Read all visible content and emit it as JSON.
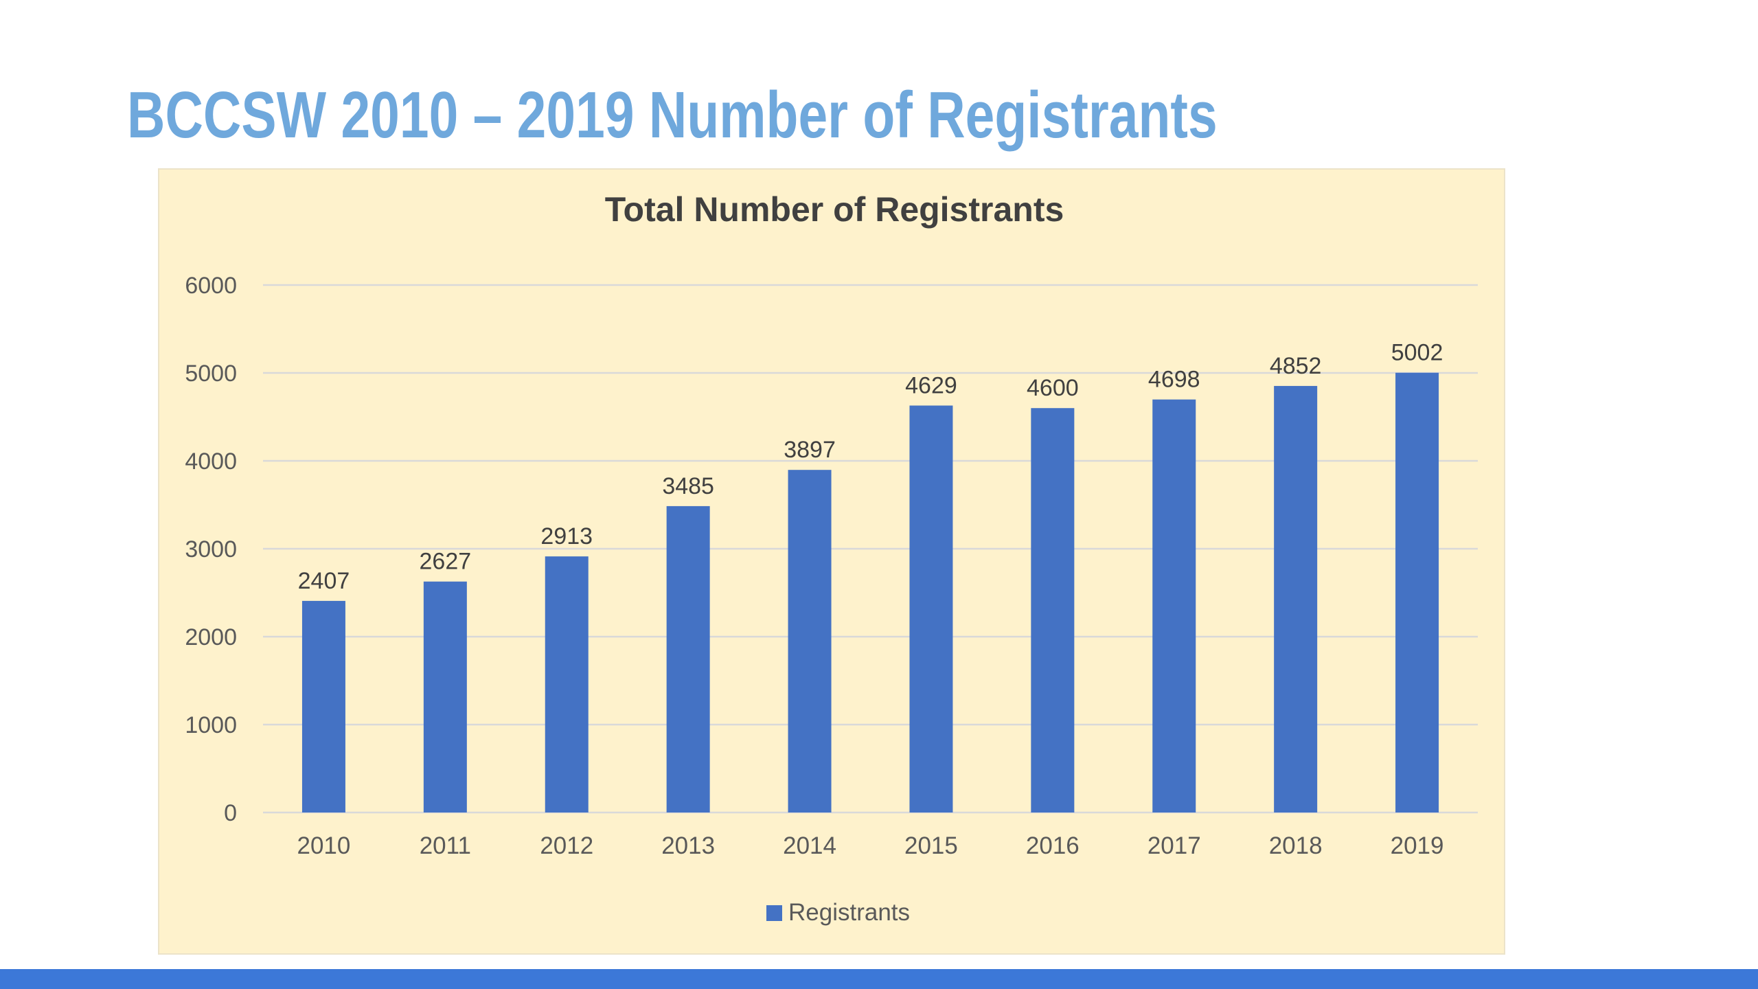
{
  "slide": {
    "title": "BCCSW 2010 – 2019 Number of Registrants",
    "title_color": "#6fa8dc",
    "bottom_bar_color": "#3c78d8"
  },
  "chart_data": {
    "type": "bar",
    "title": "Total Number of Registrants",
    "categories": [
      "2010",
      "2011",
      "2012",
      "2013",
      "2014",
      "2015",
      "2016",
      "2017",
      "2018",
      "2019"
    ],
    "series": [
      {
        "name": "Registrants",
        "values": [
          2407,
          2627,
          2913,
          3485,
          3897,
          4629,
          4600,
          4698,
          4852,
          5002
        ],
        "color": "#4472c4"
      }
    ],
    "ylim": [
      0,
      6000
    ],
    "yticks": [
      "0",
      "1000",
      "2000",
      "3000",
      "4000",
      "5000",
      "6000"
    ],
    "xlabel": "",
    "ylabel": "",
    "grid": true,
    "data_labels": true,
    "legend_position": "bottom",
    "background_color": "#fef2cc",
    "gridline_color": "#d9d9d9",
    "text_color": "#595959",
    "title_color": "#404040"
  }
}
